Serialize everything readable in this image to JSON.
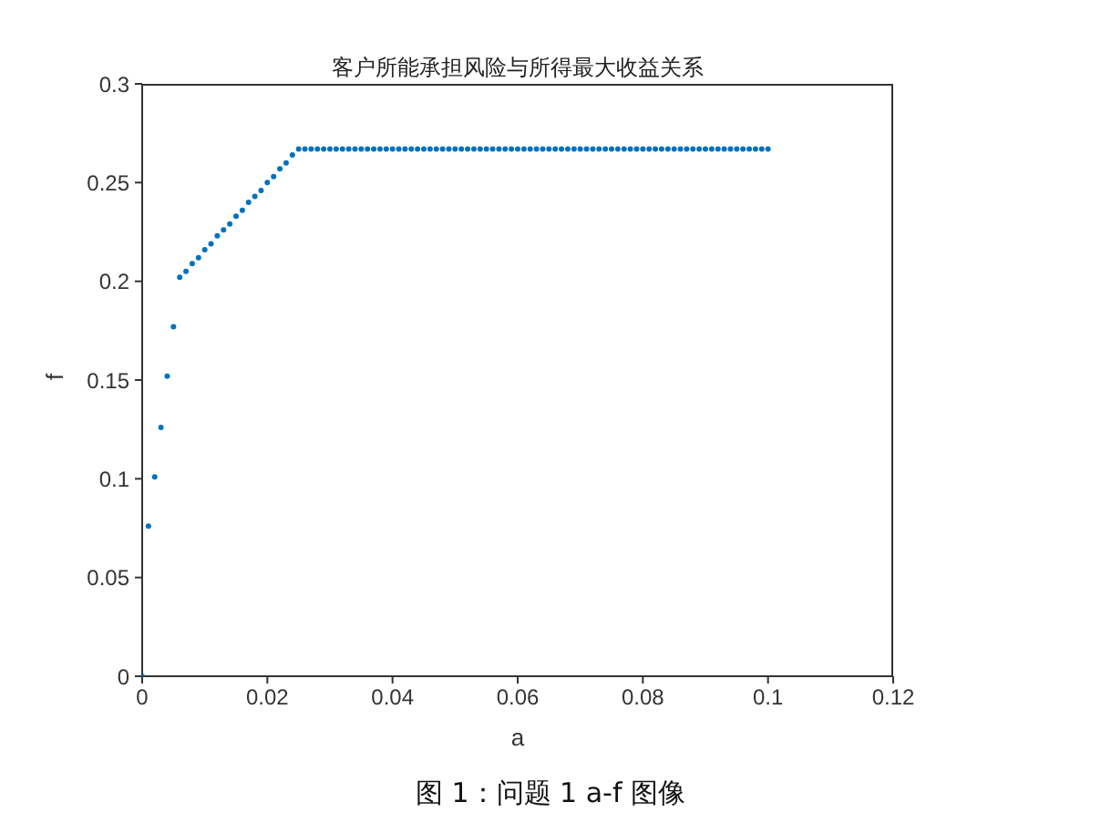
{
  "chart_data": {
    "type": "scatter",
    "title": "客户所能承担风险与所得最大收益关系",
    "xlabel": "a",
    "ylabel": "f",
    "annotations": [
      "图 1：问题 1 a-f 图像"
    ],
    "x": [
      0,
      0.001,
      0.002,
      0.003,
      0.004,
      0.005,
      0.006,
      0.007,
      0.008,
      0.009,
      0.01,
      0.011,
      0.012,
      0.013,
      0.014,
      0.015,
      0.016,
      0.017,
      0.018,
      0.019,
      0.02,
      0.021,
      0.022,
      0.023,
      0.024,
      0.025,
      0.026,
      0.027,
      0.028,
      0.029,
      0.03,
      0.031,
      0.032,
      0.033,
      0.034,
      0.035,
      0.036,
      0.037,
      0.038,
      0.039,
      0.04,
      0.041,
      0.042,
      0.043,
      0.044,
      0.045,
      0.046,
      0.047,
      0.048,
      0.049,
      0.05,
      0.051,
      0.052,
      0.053,
      0.054,
      0.055,
      0.056,
      0.057,
      0.058,
      0.059,
      0.06,
      0.061,
      0.062,
      0.063,
      0.064,
      0.065,
      0.066,
      0.067,
      0.068,
      0.069,
      0.07,
      0.071,
      0.072,
      0.073,
      0.074,
      0.075,
      0.076,
      0.077,
      0.078,
      0.079,
      0.08,
      0.081,
      0.082,
      0.083,
      0.084,
      0.085,
      0.086,
      0.087,
      0.088,
      0.089,
      0.09,
      0.091,
      0.092,
      0.093,
      0.094,
      0.095,
      0.096,
      0.097,
      0.098,
      0.099,
      0.1
    ],
    "series": [
      {
        "color": "#0072bd",
        "values": [
          0,
          0.076,
          0.101,
          0.126,
          0.152,
          0.177,
          0.202,
          0.205,
          0.209,
          0.212,
          0.216,
          0.219,
          0.223,
          0.226,
          0.229,
          0.233,
          0.236,
          0.24,
          0.243,
          0.246,
          0.25,
          0.253,
          0.257,
          0.26,
          0.264,
          0.267,
          0.267,
          0.267,
          0.267,
          0.267,
          0.267,
          0.267,
          0.267,
          0.267,
          0.267,
          0.267,
          0.267,
          0.267,
          0.267,
          0.267,
          0.267,
          0.267,
          0.267,
          0.267,
          0.267,
          0.267,
          0.267,
          0.267,
          0.267,
          0.267,
          0.267,
          0.267,
          0.267,
          0.267,
          0.267,
          0.267,
          0.267,
          0.267,
          0.267,
          0.267,
          0.267,
          0.267,
          0.267,
          0.267,
          0.267,
          0.267,
          0.267,
          0.267,
          0.267,
          0.267,
          0.267,
          0.267,
          0.267,
          0.267,
          0.267,
          0.267,
          0.267,
          0.267,
          0.267,
          0.267,
          0.267,
          0.267,
          0.267,
          0.267,
          0.267,
          0.267,
          0.267,
          0.267,
          0.267,
          0.267,
          0.267,
          0.267,
          0.267,
          0.267,
          0.267,
          0.267,
          0.267,
          0.267,
          0.267,
          0.267,
          0.267
        ]
      }
    ],
    "xlim": [
      0,
      0.12
    ],
    "xticks": [
      0,
      0.02,
      0.04,
      0.06,
      0.08,
      0.1,
      0.12
    ],
    "ylim": [
      0,
      0.3
    ],
    "yticks": [
      0,
      0.05,
      0.1,
      0.15,
      0.2,
      0.25,
      0.3
    ],
    "grid": false,
    "legend": false,
    "marker": "circle"
  }
}
